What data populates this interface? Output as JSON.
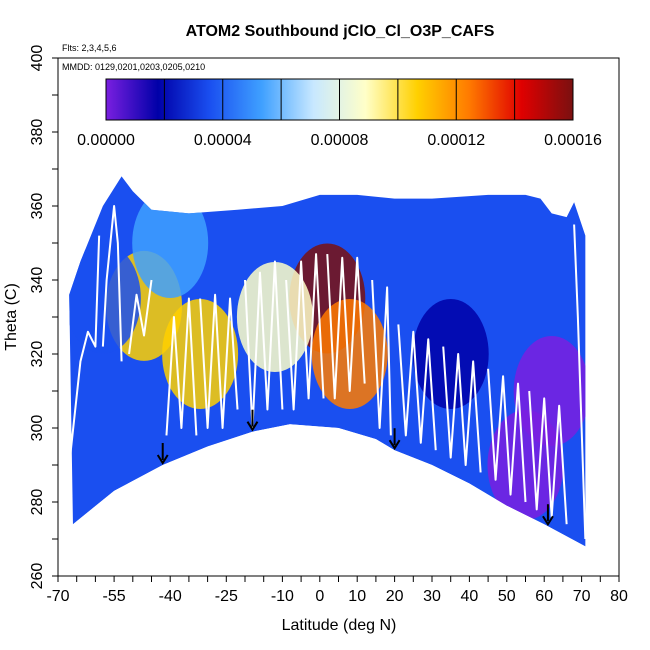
{
  "chart_data": {
    "type": "heatmap",
    "title": "ATOM2 Southbound jClO_Cl_O3P_CAFS",
    "subtitle_flights": "Flts: 2,3,4,5,6",
    "subtitle_dates": "MMDD: 0129,0201,0203,0205,0210",
    "xlabel": "Latitude (deg N)",
    "ylabel": "Theta (C)",
    "xlim": [
      -70,
      80
    ],
    "ylim": [
      260,
      400
    ],
    "x_tick_labels": [
      "-70",
      "-55",
      "-40",
      "-25",
      "-10",
      "0",
      "10",
      "20",
      "30",
      "40",
      "50",
      "60",
      "70",
      "80"
    ],
    "y_tick_labels": [
      "260",
      "280",
      "300",
      "320",
      "340",
      "360",
      "380",
      "400"
    ],
    "colorbar": {
      "range": [
        0,
        0.00016
      ],
      "tick_values": [
        0,
        4e-05,
        8e-05,
        0.00012,
        0.00016
      ],
      "tick_labels": [
        "0.00000",
        "0.00004",
        "0.00008",
        "0.00012",
        "0.00016"
      ],
      "minor_tick_values": [
        2e-05,
        6e-05,
        0.0001,
        0.00014
      ],
      "colors": [
        "#7a1fe0",
        "#0000a8",
        "#1a4ff0",
        "#3fa0ff",
        "#c8e8ff",
        "#ffffc8",
        "#ffd000",
        "#ff7a00",
        "#e00000",
        "#7a1010"
      ]
    },
    "arrows_latitude": [
      -42,
      -18,
      20,
      61
    ],
    "ground_boundary": [
      [
        -66,
        274
      ],
      [
        -55,
        283
      ],
      [
        -42,
        290
      ],
      [
        -30,
        295
      ],
      [
        -18,
        299
      ],
      [
        -8,
        301
      ],
      [
        5,
        300
      ],
      [
        15,
        297
      ],
      [
        20,
        294
      ],
      [
        30,
        290
      ],
      [
        40,
        285
      ],
      [
        50,
        279
      ],
      [
        60,
        274
      ],
      [
        71,
        268
      ]
    ],
    "data_top_boundary": [
      [
        -67,
        336
      ],
      [
        -64,
        345
      ],
      [
        -58,
        360
      ],
      [
        -53,
        368
      ],
      [
        -50,
        364
      ],
      [
        -45,
        359
      ],
      [
        -35,
        358
      ],
      [
        -22,
        359
      ],
      [
        -10,
        360
      ],
      [
        0,
        363
      ],
      [
        10,
        363
      ],
      [
        20,
        362
      ],
      [
        30,
        362
      ],
      [
        45,
        363
      ],
      [
        55,
        363
      ],
      [
        59,
        362
      ],
      [
        62,
        358
      ],
      [
        66,
        357
      ],
      [
        68,
        361
      ],
      [
        71,
        352
      ]
    ],
    "field_blobs": [
      {
        "lat": 2,
        "theta": 335,
        "value": 0.000155
      },
      {
        "lat": 8,
        "theta": 320,
        "value": 0.00013
      },
      {
        "lat": -32,
        "theta": 320,
        "value": 0.00011
      },
      {
        "lat": -47,
        "theta": 333,
        "value": 0.00011
      },
      {
        "lat": -12,
        "theta": 330,
        "value": 9e-05
      },
      {
        "lat": -58,
        "theta": 335,
        "value": 4e-05
      },
      {
        "lat": -40,
        "theta": 350,
        "value": 5e-05
      },
      {
        "lat": 35,
        "theta": 320,
        "value": 1e-05
      },
      {
        "lat": 62,
        "theta": 310,
        "value": 0.0
      },
      {
        "lat": 55,
        "theta": 290,
        "value": 0.0
      }
    ],
    "flight_profiles": [
      {
        "lat": [
          -67,
          -64,
          -62,
          -60,
          -59
        ],
        "theta": [
          290,
          318,
          326,
          322,
          352
        ]
      },
      {
        "lat": [
          -58,
          -57,
          -55,
          -54,
          -53
        ],
        "theta": [
          322,
          340,
          360,
          350,
          318
        ]
      },
      {
        "lat": [
          -51,
          -49,
          -47,
          -45
        ],
        "theta": [
          320,
          336,
          325,
          340
        ]
      },
      {
        "lat": [
          -41,
          -39,
          -37,
          -35,
          -33
        ],
        "theta": [
          298,
          330,
          300,
          335,
          298
        ]
      },
      {
        "lat": [
          -32,
          -30,
          -28,
          -26,
          -24,
          -22
        ],
        "theta": [
          335,
          300,
          336,
          300,
          335,
          305
        ]
      },
      {
        "lat": [
          -20,
          -18,
          -16,
          -14,
          -12,
          -10
        ],
        "theta": [
          340,
          300,
          342,
          305,
          345,
          305
        ]
      },
      {
        "lat": [
          -9,
          -7,
          -5,
          -3,
          -1,
          1
        ],
        "theta": [
          340,
          305,
          345,
          308,
          347,
          308
        ]
      },
      {
        "lat": [
          2,
          4,
          6,
          8,
          10,
          12
        ],
        "theta": [
          347,
          308,
          346,
          310,
          346,
          312
        ]
      },
      {
        "lat": [
          14,
          16,
          18,
          19
        ],
        "theta": [
          340,
          300,
          338,
          298
        ]
      },
      {
        "lat": [
          21,
          23,
          25,
          27,
          29,
          31
        ],
        "theta": [
          328,
          298,
          326,
          296,
          324,
          294
        ]
      },
      {
        "lat": [
          33,
          35,
          37,
          39,
          41,
          43
        ],
        "theta": [
          322,
          292,
          320,
          290,
          318,
          288
        ]
      },
      {
        "lat": [
          45,
          47,
          49,
          51,
          53,
          55
        ],
        "theta": [
          316,
          286,
          314,
          282,
          312,
          280
        ]
      },
      {
        "lat": [
          56,
          58,
          60,
          62,
          64,
          66
        ],
        "theta": [
          310,
          278,
          308,
          276,
          306,
          274
        ]
      },
      {
        "lat": [
          68,
          69,
          70,
          71
        ],
        "theta": [
          355,
          330,
          300,
          270
        ]
      }
    ]
  }
}
